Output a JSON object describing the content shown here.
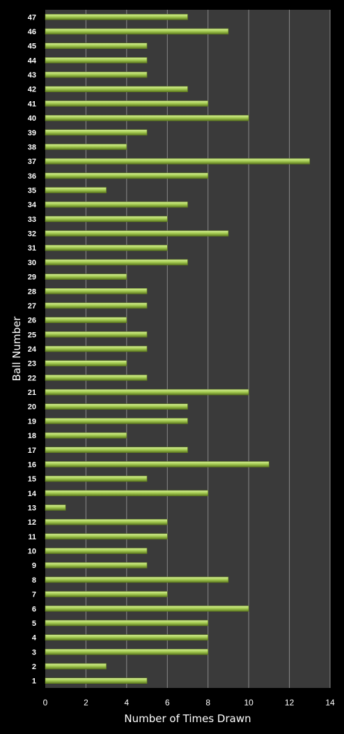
{
  "chart_data": {
    "type": "bar",
    "orientation": "horizontal",
    "xlabel": "Number of Times Drawn",
    "ylabel": "Ball Number",
    "xlim": [
      0,
      14
    ],
    "xticks": [
      0,
      2,
      4,
      6,
      8,
      10,
      12,
      14
    ],
    "grid": true,
    "categories": [
      "1",
      "2",
      "3",
      "4",
      "5",
      "6",
      "7",
      "8",
      "9",
      "10",
      "11",
      "12",
      "13",
      "14",
      "15",
      "16",
      "17",
      "18",
      "19",
      "20",
      "21",
      "22",
      "23",
      "24",
      "25",
      "26",
      "27",
      "28",
      "29",
      "30",
      "31",
      "32",
      "33",
      "34",
      "35",
      "36",
      "37",
      "38",
      "39",
      "40",
      "41",
      "42",
      "43",
      "44",
      "45",
      "46",
      "47"
    ],
    "values": [
      5,
      3,
      8,
      8,
      8,
      10,
      6,
      9,
      5,
      5,
      6,
      6,
      1,
      8,
      5,
      11,
      7,
      4,
      7,
      7,
      10,
      5,
      4,
      5,
      5,
      4,
      5,
      5,
      4,
      7,
      6,
      9,
      6,
      7,
      3,
      8,
      13,
      4,
      5,
      10,
      8,
      7,
      5,
      5,
      5,
      9,
      7
    ],
    "colors": {
      "background": "#000000",
      "plot_area": "#3a3a3a",
      "gridline": "#8a8a8a",
      "bar_light": "#d8ef9a",
      "bar_mid": "#a8cf55",
      "bar_dark": "#5e7a1f",
      "text": "#ffffff"
    }
  }
}
